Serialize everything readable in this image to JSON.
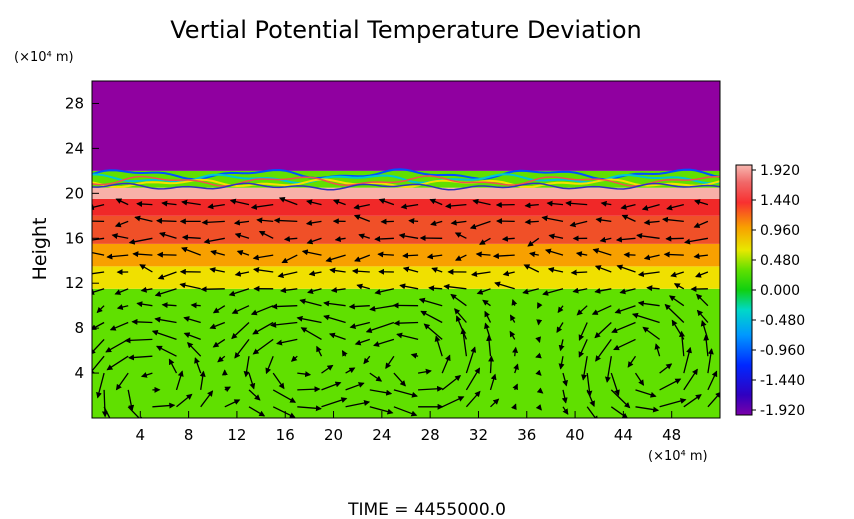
{
  "chart_data": {
    "type": "heatmap",
    "title": "Vertial Potential Temperature Deviation",
    "ylabel": "Height",
    "y_unit": "(×10⁴ m)",
    "x_unit": "(×10⁴ m)",
    "footer": "TIME = 4455000.0",
    "xlim": [
      0,
      52
    ],
    "ylim": [
      0,
      30
    ],
    "x_ticks": [
      4,
      8,
      12,
      16,
      20,
      24,
      28,
      32,
      36,
      40,
      44,
      48
    ],
    "y_ticks": [
      4,
      8,
      12,
      16,
      20,
      24,
      28
    ],
    "colorbar": {
      "ticks": [
        "1.920",
        "1.440",
        "0.960",
        "0.480",
        "0.000",
        "-0.480",
        "-0.960",
        "-1.440",
        "-1.920"
      ],
      "range": [
        -1.92,
        1.92
      ]
    },
    "layers": [
      {
        "y": [
          0,
          11.5
        ],
        "value": 0.1
      },
      {
        "y": [
          11.5,
          13.5
        ],
        "value": 0.75
      },
      {
        "y": [
          13.5,
          15.5
        ],
        "value": 1.0
      },
      {
        "y": [
          15.5,
          18
        ],
        "value": 1.45
      },
      {
        "y": [
          18,
          19.5
        ],
        "value": 1.7
      },
      {
        "y": [
          19.5,
          20.5
        ],
        "value": 1.92
      },
      {
        "y": [
          20.5,
          22
        ],
        "value": 0.3
      },
      {
        "y": [
          22,
          30
        ],
        "value": -1.92
      }
    ],
    "vectors": "wind field arrows (direction/magnitude shown graphically)"
  },
  "colors": {
    "top_purple": "#9000a0",
    "green": "#18d018",
    "yellow": "#f0e000",
    "orange": "#f89000",
    "red": "#f02828",
    "pink": "#f8b0a8"
  }
}
